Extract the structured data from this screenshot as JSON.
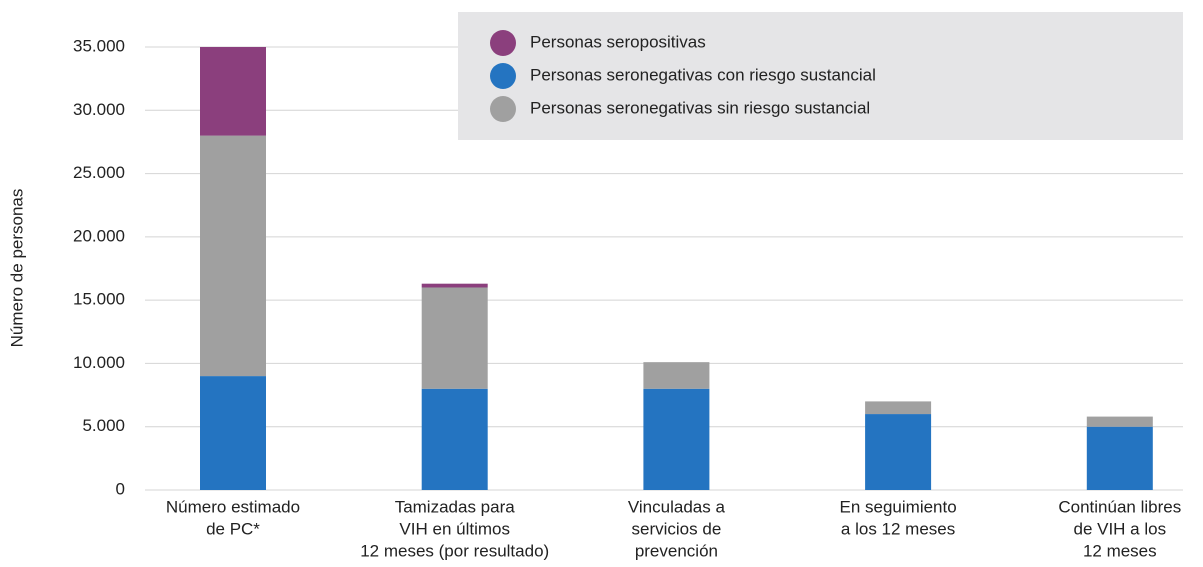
{
  "chart_data": {
    "type": "stacked_bar",
    "y_axis_label": "Número de personas",
    "categories": [
      [
        "Número estimado",
        "de PC*"
      ],
      [
        "Tamizadas para",
        "VIH en últimos",
        "12 meses (por resultado)"
      ],
      [
        "Vinculadas a",
        "servicios de",
        "prevención"
      ],
      [
        "En seguimiento",
        "a los 12 meses"
      ],
      [
        "Continúan libres",
        "de VIH a los",
        "12 meses"
      ]
    ],
    "series": [
      {
        "name": "Personas seropositivas",
        "color": "#8b3f7d",
        "values": [
          7000,
          300,
          null,
          null,
          null
        ]
      },
      {
        "name": "Personas seronegativas con riesgo sustancial",
        "color": "#2474c1",
        "values": [
          9000,
          8000,
          8000,
          6000,
          5000
        ]
      },
      {
        "name": "Personas seronegativas sin riesgo sustancial",
        "color": "#a0a0a0",
        "values": [
          19000,
          8000,
          2100,
          1000,
          800
        ]
      }
    ],
    "ylim": [
      0,
      35000
    ],
    "yticks": [
      0,
      {
        "value": 5000,
        "label": "5.000"
      },
      {
        "value": 10000,
        "label": "10.000"
      },
      {
        "value": 15000,
        "label": "15.000"
      },
      {
        "value": 20000,
        "label": "20.000"
      },
      {
        "value": 25000,
        "label": "25.000"
      },
      {
        "value": 30000,
        "label": "30.000"
      },
      {
        "value": 35000,
        "label": "35.000"
      }
    ],
    "grid": true,
    "legend": "top-right"
  }
}
